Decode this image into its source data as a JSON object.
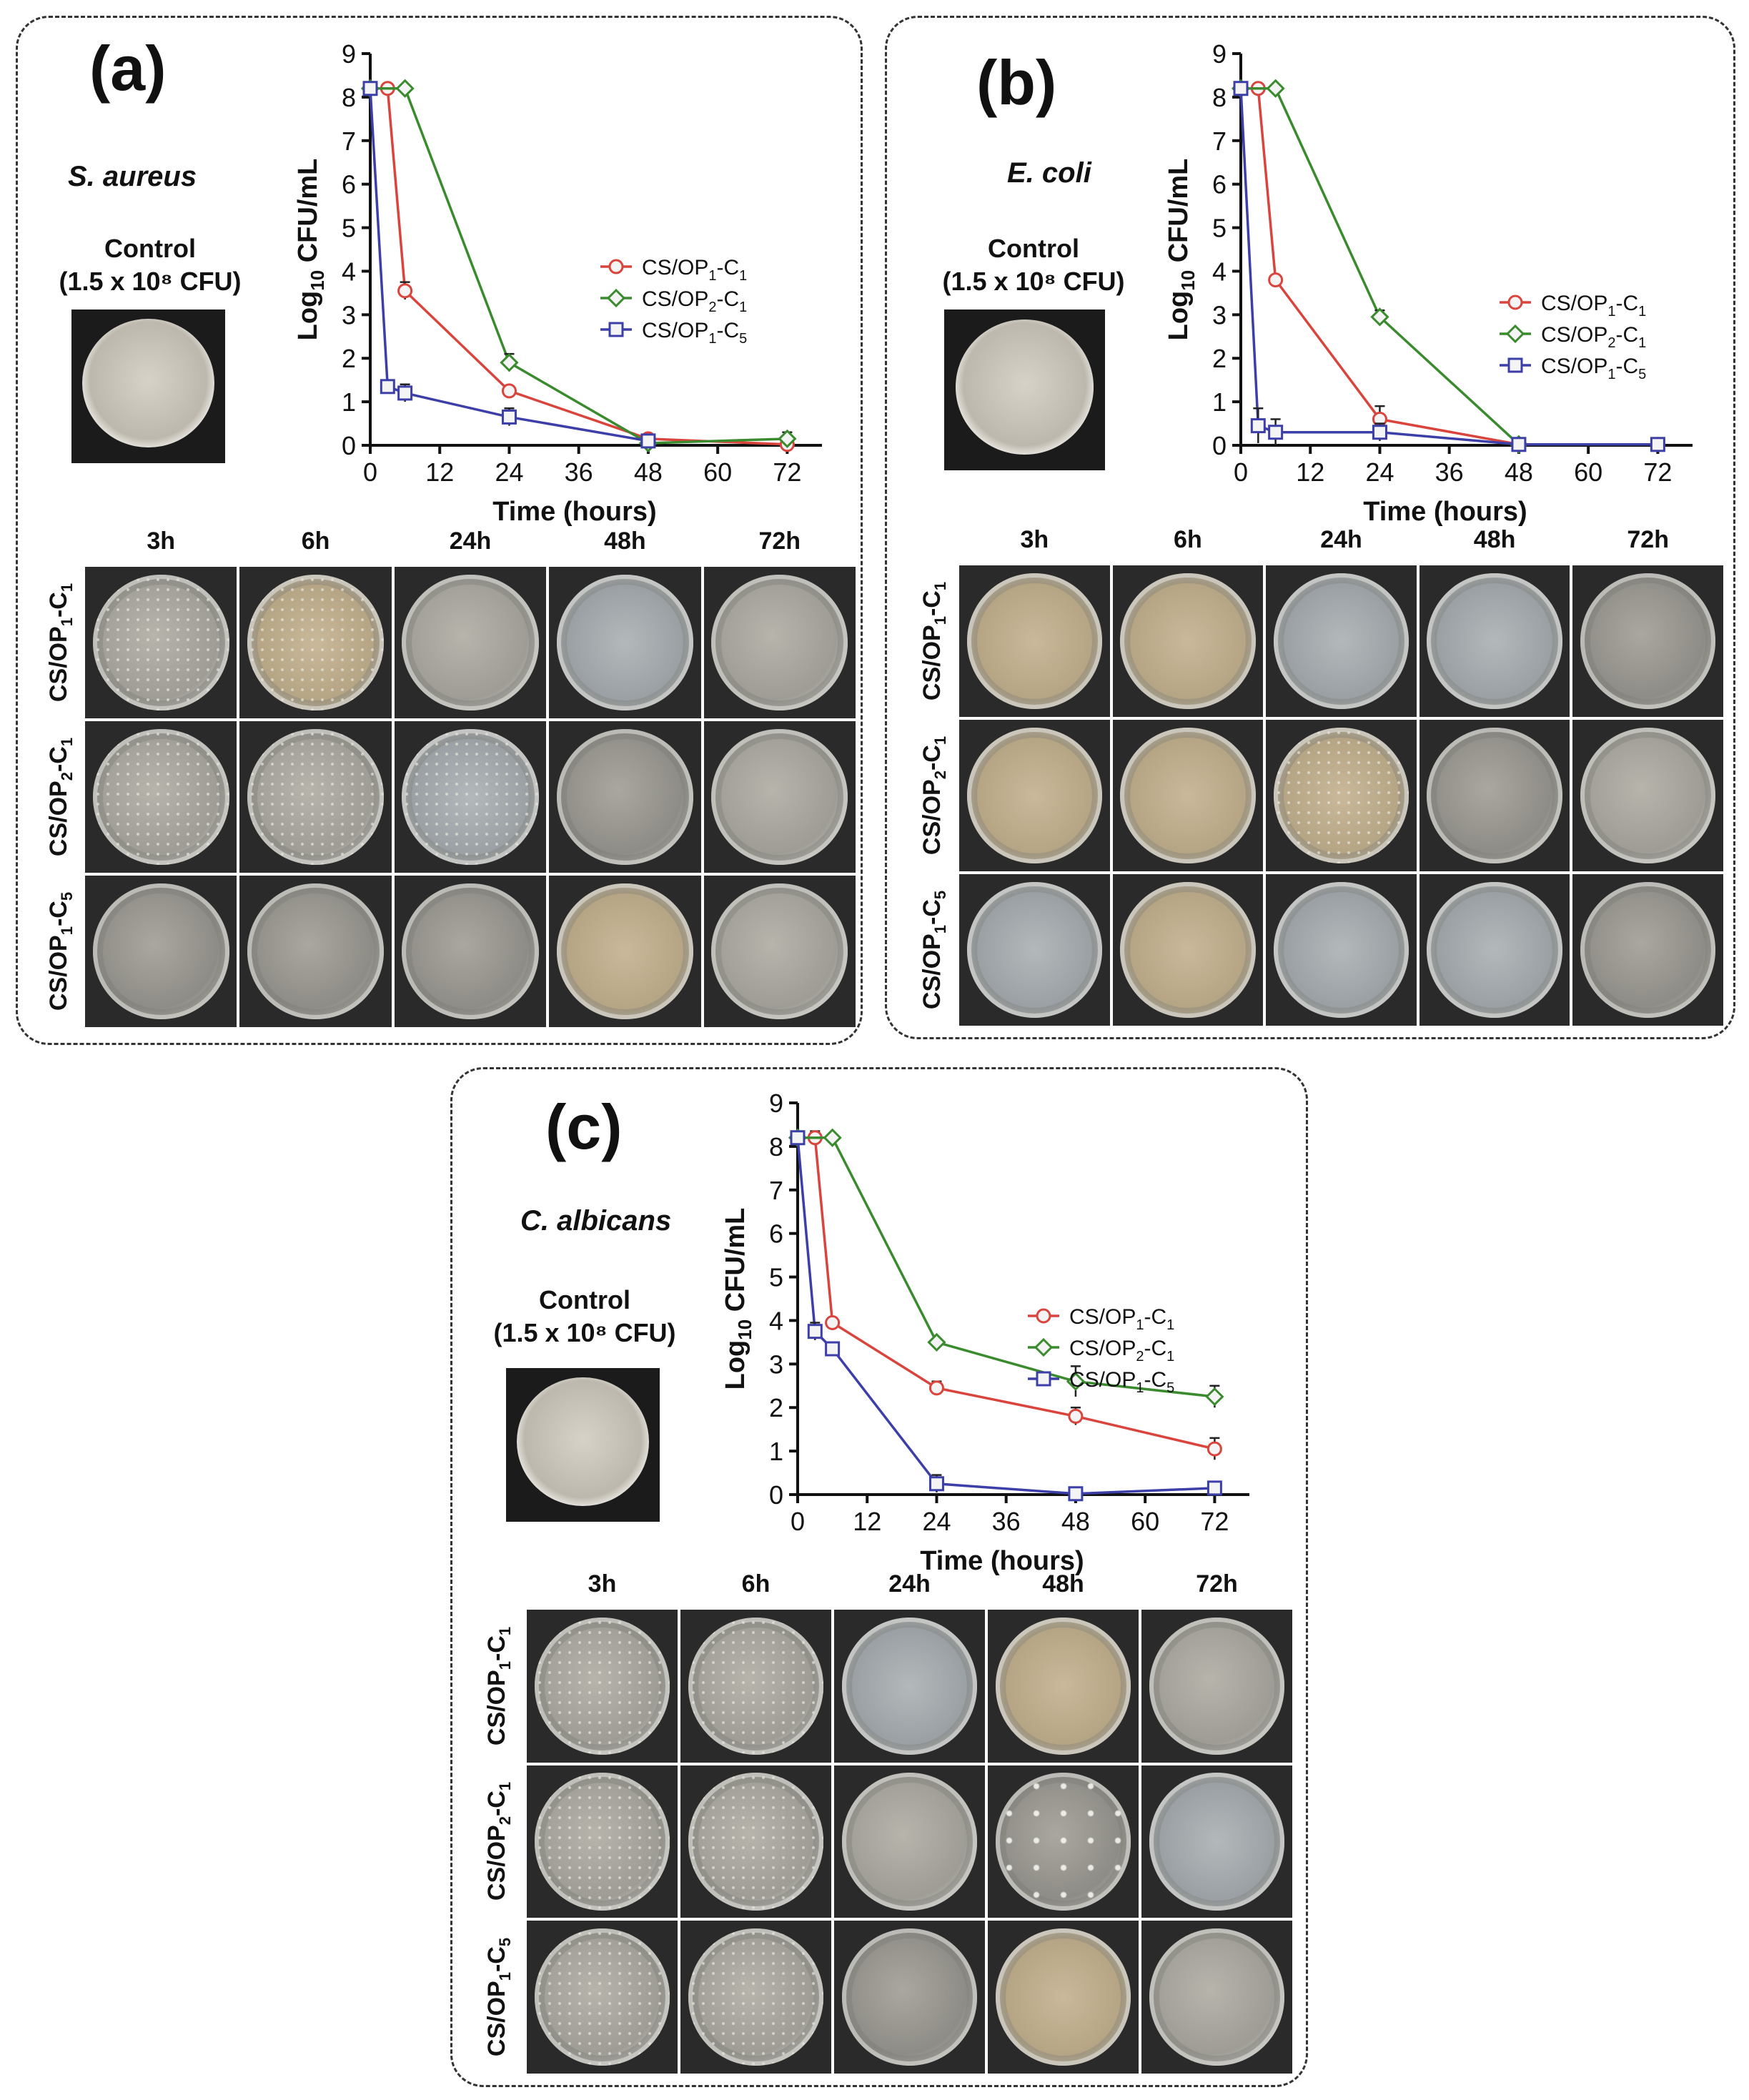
{
  "panels": [
    {
      "id": "a",
      "label": "(a)",
      "organism": "S. aureus",
      "control_label": "Control",
      "control_cfu": "(1.5 x 10⁸ CFU)",
      "time_headers": [
        "3h",
        "6h",
        "24h",
        "48h",
        "72h"
      ],
      "row_labels": [
        {
          "prefix": "CS/OP",
          "s1": "1",
          "mid": "-C",
          "s2": "1"
        },
        {
          "prefix": "CS/OP",
          "s1": "2",
          "mid": "-C",
          "s2": "1"
        },
        {
          "prefix": "CS/OP",
          "s1": "1",
          "mid": "-C",
          "s2": "5"
        }
      ]
    },
    {
      "id": "b",
      "label": "(b)",
      "organism": "E. coli",
      "control_label": "Control",
      "control_cfu": "(1.5 x 10⁸ CFU)",
      "time_headers": [
        "3h",
        "6h",
        "24h",
        "48h",
        "72h"
      ],
      "row_labels": [
        {
          "prefix": "CS/OP",
          "s1": "1",
          "mid": "-C",
          "s2": "1"
        },
        {
          "prefix": "CS/OP",
          "s1": "2",
          "mid": "-C",
          "s2": "1"
        },
        {
          "prefix": "CS/OP",
          "s1": "1",
          "mid": "-C",
          "s2": "5"
        }
      ]
    },
    {
      "id": "c",
      "label": "(c)",
      "organism": "C. albicans",
      "control_label": "Control",
      "control_cfu": "(1.5 x 10⁸ CFU)",
      "time_headers": [
        "3h",
        "6h",
        "24h",
        "48h",
        "72h"
      ],
      "row_labels": [
        {
          "prefix": "CS/OP",
          "s1": "1",
          "mid": "-C",
          "s2": "1"
        },
        {
          "prefix": "CS/OP",
          "s1": "2",
          "mid": "-C",
          "s2": "1"
        },
        {
          "prefix": "CS/OP",
          "s1": "1",
          "mid": "-C",
          "s2": "5"
        }
      ]
    }
  ],
  "chart_data": [
    {
      "type": "line",
      "panel": "a",
      "xlabel": "Time (hours)",
      "ylabel": "Log10 CFU/mL",
      "xlim": [
        0,
        78
      ],
      "ylim": [
        0,
        9
      ],
      "xticks": [
        0,
        12,
        24,
        36,
        48,
        60,
        72
      ],
      "yticks": [
        0,
        1,
        2,
        3,
        4,
        5,
        6,
        7,
        8,
        9
      ],
      "legend_position": "top-right",
      "series": [
        {
          "name": "CS/OP1-C1",
          "color": "#d9443c",
          "marker": "circle",
          "x": [
            0,
            3,
            6,
            24,
            48,
            72
          ],
          "y": [
            8.2,
            8.2,
            3.55,
            1.25,
            0.15,
            0.02
          ],
          "err": [
            0,
            0,
            0.2,
            0.05,
            0.1,
            0.05
          ]
        },
        {
          "name": "CS/OP2-C1",
          "color": "#3a8a2e",
          "marker": "diamond",
          "x": [
            0,
            6,
            24,
            48,
            72
          ],
          "y": [
            8.2,
            8.2,
            1.9,
            0.05,
            0.15
          ],
          "err": [
            0,
            0,
            0.2,
            0.05,
            0.15
          ]
        },
        {
          "name": "CS/OP1-C5",
          "color": "#3c3fa8",
          "marker": "square",
          "x": [
            0,
            3,
            6,
            24,
            48
          ],
          "y": [
            8.2,
            1.35,
            1.2,
            0.65,
            0.1
          ],
          "err": [
            0,
            0.12,
            0.2,
            0.2,
            0.05
          ]
        }
      ]
    },
    {
      "type": "line",
      "panel": "b",
      "xlabel": "Time (hours)",
      "ylabel": "Log10 CFU/mL",
      "xlim": [
        0,
        78
      ],
      "ylim": [
        0,
        9
      ],
      "xticks": [
        0,
        12,
        24,
        36,
        48,
        60,
        72
      ],
      "yticks": [
        0,
        1,
        2,
        3,
        4,
        5,
        6,
        7,
        8,
        9
      ],
      "legend_position": "right",
      "series": [
        {
          "name": "CS/OP1-C1",
          "color": "#d9443c",
          "marker": "circle",
          "x": [
            0,
            3,
            6,
            24,
            48,
            72
          ],
          "y": [
            8.2,
            8.2,
            3.8,
            0.6,
            0.02,
            0.02
          ],
          "err": [
            0,
            0,
            0.05,
            0.3,
            0.05,
            0.05
          ]
        },
        {
          "name": "CS/OP2-C1",
          "color": "#3a8a2e",
          "marker": "diamond",
          "x": [
            0,
            6,
            24,
            48
          ],
          "y": [
            8.2,
            8.2,
            2.95,
            0.02
          ],
          "err": [
            0,
            0,
            0.15,
            0.05
          ]
        },
        {
          "name": "CS/OP1-C5",
          "color": "#3c3fa8",
          "marker": "square",
          "x": [
            0,
            3,
            6,
            24,
            48,
            72
          ],
          "y": [
            8.2,
            0.45,
            0.3,
            0.3,
            0.02,
            0.02
          ],
          "err": [
            0,
            0.4,
            0.3,
            0.2,
            0.05,
            0.05
          ]
        }
      ]
    },
    {
      "type": "line",
      "panel": "c",
      "xlabel": "Time (hours)",
      "ylabel": "Log10 CFU/mL",
      "xlim": [
        0,
        78
      ],
      "ylim": [
        0,
        9
      ],
      "xticks": [
        0,
        12,
        24,
        36,
        48,
        60,
        72
      ],
      "yticks": [
        0,
        1,
        2,
        3,
        4,
        5,
        6,
        7,
        8,
        9
      ],
      "legend_position": "top-right",
      "series": [
        {
          "name": "CS/OP1-C1",
          "color": "#d9443c",
          "marker": "circle",
          "x": [
            0,
            3,
            6,
            24,
            48,
            72
          ],
          "y": [
            8.2,
            8.2,
            3.95,
            2.45,
            1.8,
            1.05
          ],
          "err": [
            0,
            0.15,
            0.05,
            0.15,
            0.2,
            0.25
          ]
        },
        {
          "name": "CS/OP2-C1",
          "color": "#3a8a2e",
          "marker": "diamond",
          "x": [
            0,
            6,
            24,
            48,
            72
          ],
          "y": [
            8.2,
            8.2,
            3.5,
            2.6,
            2.25
          ],
          "err": [
            0,
            0,
            0.05,
            0.35,
            0.25
          ]
        },
        {
          "name": "CS/OP1-C5",
          "color": "#3c3fa8",
          "marker": "square",
          "x": [
            0,
            3,
            6,
            24,
            48,
            72
          ],
          "y": [
            8.2,
            3.75,
            3.35,
            0.25,
            0.02,
            0.15
          ],
          "err": [
            0,
            0.2,
            0.05,
            0.2,
            0.05,
            0.1
          ]
        }
      ]
    }
  ]
}
